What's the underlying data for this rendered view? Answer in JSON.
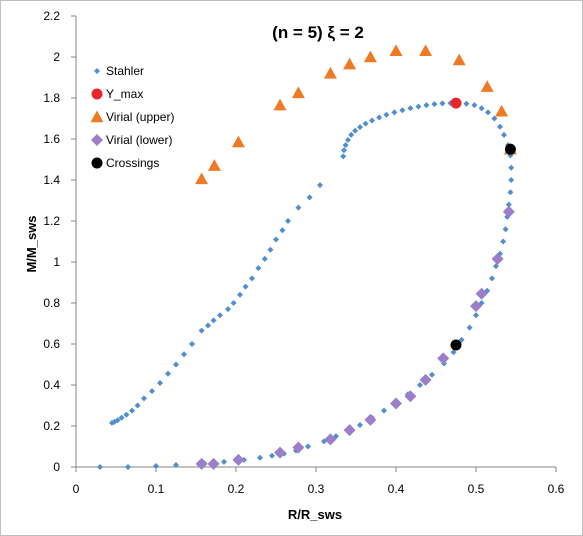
{
  "chart_data": {
    "type": "scatter",
    "title": "(n = 5)   ξ = 2",
    "xlabel": "R/R_sws",
    "ylabel": "M/M_sws",
    "xlim": [
      0,
      0.6
    ],
    "ylim": [
      0,
      2.2
    ],
    "x_ticks": [
      "0",
      "0.1",
      "0.2",
      "0.3",
      "0.4",
      "0.5",
      "0.6"
    ],
    "y_ticks": [
      "0",
      "0.2",
      "0.4",
      "0.6",
      "0.8",
      "1",
      "1.2",
      "1.4",
      "1.6",
      "1.8",
      "2",
      "2.2"
    ],
    "grid": false,
    "legend_position": "top-left",
    "series": [
      {
        "name": "Stahler",
        "marker": "diamond-small",
        "color": "#4f8fd0",
        "points": [
          [
            0.03,
            0.0
          ],
          [
            0.065,
            0.0
          ],
          [
            0.1,
            0.005
          ],
          [
            0.125,
            0.01
          ],
          [
            0.16,
            0.02
          ],
          [
            0.185,
            0.025
          ],
          [
            0.21,
            0.035
          ],
          [
            0.23,
            0.045
          ],
          [
            0.245,
            0.055
          ],
          [
            0.26,
            0.065
          ],
          [
            0.275,
            0.08
          ],
          [
            0.29,
            0.1
          ],
          [
            0.31,
            0.125
          ],
          [
            0.325,
            0.15
          ],
          [
            0.34,
            0.175
          ],
          [
            0.355,
            0.205
          ],
          [
            0.37,
            0.24
          ],
          [
            0.385,
            0.275
          ],
          [
            0.4,
            0.315
          ],
          [
            0.415,
            0.355
          ],
          [
            0.43,
            0.4
          ],
          [
            0.445,
            0.45
          ],
          [
            0.46,
            0.505
          ],
          [
            0.472,
            0.56
          ],
          [
            0.482,
            0.62
          ],
          [
            0.492,
            0.68
          ],
          [
            0.5,
            0.74
          ],
          [
            0.507,
            0.8
          ],
          [
            0.514,
            0.86
          ],
          [
            0.52,
            0.92
          ],
          [
            0.525,
            0.98
          ],
          [
            0.53,
            1.04
          ],
          [
            0.534,
            1.1
          ],
          [
            0.537,
            1.16
          ],
          [
            0.539,
            1.22
          ],
          [
            0.541,
            1.28
          ],
          [
            0.543,
            1.34
          ],
          [
            0.544,
            1.4
          ],
          [
            0.544,
            1.46
          ],
          [
            0.543,
            1.52
          ],
          [
            0.54,
            1.57
          ],
          [
            0.535,
            1.62
          ],
          [
            0.53,
            1.66
          ],
          [
            0.523,
            1.7
          ],
          [
            0.515,
            1.73
          ],
          [
            0.507,
            1.75
          ],
          [
            0.498,
            1.765
          ],
          [
            0.488,
            1.772
          ],
          [
            0.478,
            1.775
          ],
          [
            0.468,
            1.775
          ],
          [
            0.458,
            1.774
          ],
          [
            0.448,
            1.77
          ],
          [
            0.438,
            1.765
          ],
          [
            0.428,
            1.758
          ],
          [
            0.418,
            1.75
          ],
          [
            0.408,
            1.74
          ],
          [
            0.398,
            1.73
          ],
          [
            0.388,
            1.718
          ],
          [
            0.379,
            1.705
          ],
          [
            0.37,
            1.69
          ],
          [
            0.362,
            1.675
          ],
          [
            0.355,
            1.658
          ],
          [
            0.349,
            1.64
          ],
          [
            0.344,
            1.62
          ],
          [
            0.34,
            1.595
          ],
          [
            0.337,
            1.57
          ],
          [
            0.335,
            1.545
          ],
          [
            0.334,
            1.515
          ],
          [
            0.305,
            1.375
          ],
          [
            0.292,
            1.315
          ],
          [
            0.278,
            1.265
          ],
          [
            0.265,
            1.2
          ],
          [
            0.258,
            1.155
          ],
          [
            0.25,
            1.11
          ],
          [
            0.243,
            1.06
          ],
          [
            0.236,
            1.015
          ],
          [
            0.228,
            0.97
          ],
          [
            0.22,
            0.92
          ],
          [
            0.212,
            0.88
          ],
          [
            0.205,
            0.84
          ],
          [
            0.197,
            0.8
          ],
          [
            0.19,
            0.77
          ],
          [
            0.18,
            0.74
          ],
          [
            0.172,
            0.715
          ],
          [
            0.165,
            0.69
          ],
          [
            0.157,
            0.665
          ],
          [
            0.145,
            0.6
          ],
          [
            0.135,
            0.55
          ],
          [
            0.125,
            0.5
          ],
          [
            0.115,
            0.455
          ],
          [
            0.105,
            0.41
          ],
          [
            0.095,
            0.37
          ],
          [
            0.085,
            0.335
          ],
          [
            0.077,
            0.3
          ],
          [
            0.07,
            0.275
          ],
          [
            0.063,
            0.255
          ],
          [
            0.057,
            0.24
          ],
          [
            0.052,
            0.228
          ],
          [
            0.048,
            0.22
          ],
          [
            0.045,
            0.215
          ]
        ]
      },
      {
        "name": "Y_max",
        "marker": "circle",
        "color": "#e8262c",
        "points": [
          [
            0.475,
            1.775
          ]
        ]
      },
      {
        "name": "Virial (upper)",
        "marker": "triangle",
        "color": "#f07a24",
        "points": [
          [
            0.157,
            1.405
          ],
          [
            0.173,
            1.47
          ],
          [
            0.203,
            1.585
          ],
          [
            0.255,
            1.765
          ],
          [
            0.278,
            1.825
          ],
          [
            0.318,
            1.92
          ],
          [
            0.342,
            1.965
          ],
          [
            0.368,
            2.0
          ],
          [
            0.4,
            2.03
          ],
          [
            0.437,
            2.03
          ],
          [
            0.479,
            1.985
          ],
          [
            0.514,
            1.855
          ],
          [
            0.532,
            1.735
          ],
          [
            0.543,
            1.55
          ]
        ]
      },
      {
        "name": "Virial (lower)",
        "marker": "diamond",
        "color": "#9b7fc8",
        "points": [
          [
            0.157,
            0.015
          ],
          [
            0.172,
            0.015
          ],
          [
            0.203,
            0.035
          ],
          [
            0.255,
            0.07
          ],
          [
            0.278,
            0.095
          ],
          [
            0.318,
            0.135
          ],
          [
            0.342,
            0.18
          ],
          [
            0.368,
            0.23
          ],
          [
            0.4,
            0.31
          ],
          [
            0.418,
            0.345
          ],
          [
            0.437,
            0.425
          ],
          [
            0.459,
            0.53
          ],
          [
            0.5,
            0.785
          ],
          [
            0.507,
            0.845
          ],
          [
            0.527,
            1.015
          ],
          [
            0.541,
            1.245
          ]
        ]
      },
      {
        "name": "Crossings",
        "marker": "circle",
        "color": "#000000",
        "points": [
          [
            0.475,
            0.595
          ],
          [
            0.543,
            1.55
          ]
        ]
      }
    ]
  }
}
